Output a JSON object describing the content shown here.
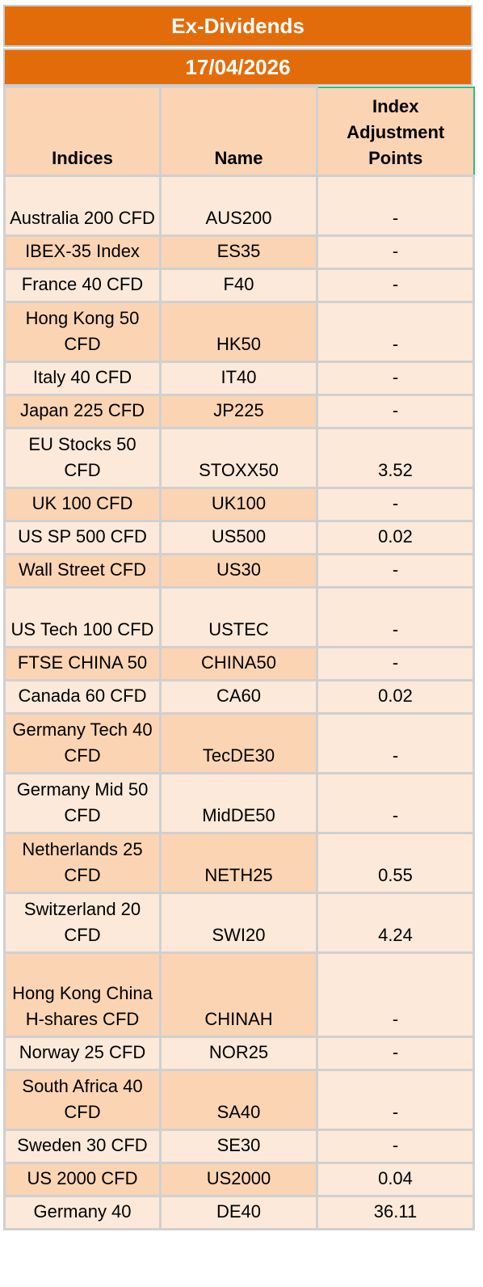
{
  "header": {
    "title": "Ex-Dividends",
    "date": "17/04/2026"
  },
  "columns": {
    "indices": "Indices",
    "name": "Name",
    "adjustment_line1": "Index",
    "adjustment_line2": "Adjustment",
    "adjustment_line3": "Points"
  },
  "rows": [
    {
      "index": "Australia 200 CFD",
      "name": "AUS200",
      "points": "-"
    },
    {
      "index": "IBEX-35 Index",
      "name": "ES35",
      "points": "-"
    },
    {
      "index": "France 40 CFD",
      "name": "F40",
      "points": "-"
    },
    {
      "index": "Hong Kong 50 CFD",
      "name": "HK50",
      "points": "-"
    },
    {
      "index": "Italy 40 CFD",
      "name": "IT40",
      "points": "-"
    },
    {
      "index": "Japan 225 CFD",
      "name": "JP225",
      "points": "-"
    },
    {
      "index": "EU Stocks 50 CFD",
      "name": "STOXX50",
      "points": "3.52"
    },
    {
      "index": "UK 100 CFD",
      "name": "UK100",
      "points": "-"
    },
    {
      "index": "US SP 500 CFD",
      "name": "US500",
      "points": "0.02"
    },
    {
      "index": "Wall Street CFD",
      "name": "US30",
      "points": "-"
    },
    {
      "index": "US Tech 100 CFD",
      "name": "USTEC",
      "points": "-"
    },
    {
      "index": "FTSE CHINA 50",
      "name": "CHINA50",
      "points": "-"
    },
    {
      "index": "Canada 60 CFD",
      "name": "CA60",
      "points": "0.02"
    },
    {
      "index": "Germany Tech 40 CFD",
      "name": "TecDE30",
      "points": "-"
    },
    {
      "index": "Germany Mid 50 CFD",
      "name": "MidDE50",
      "points": "-"
    },
    {
      "index": "Netherlands 25 CFD",
      "name": "NETH25",
      "points": "0.55"
    },
    {
      "index": "Switzerland 20 CFD",
      "name": "SWI20",
      "points": "4.24"
    },
    {
      "index": "Hong Kong China H-shares CFD",
      "name": "CHINAH",
      "points": "-"
    },
    {
      "index": "Norway 25 CFD",
      "name": "NOR25",
      "points": "-"
    },
    {
      "index": "South Africa 40 CFD",
      "name": "SA40",
      "points": "-"
    },
    {
      "index": "Sweden 30 CFD",
      "name": "SE30",
      "points": "-"
    },
    {
      "index": "US 2000 CFD",
      "name": "US2000",
      "points": "0.04"
    },
    {
      "index": "Germany 40",
      "name": "DE40",
      "points": "36.11"
    }
  ],
  "colors": {
    "banner": "#e36c0a",
    "row_light": "#fde9d9",
    "row_dark": "#fbd4b4",
    "header_highlight": "#2ebd7e"
  }
}
